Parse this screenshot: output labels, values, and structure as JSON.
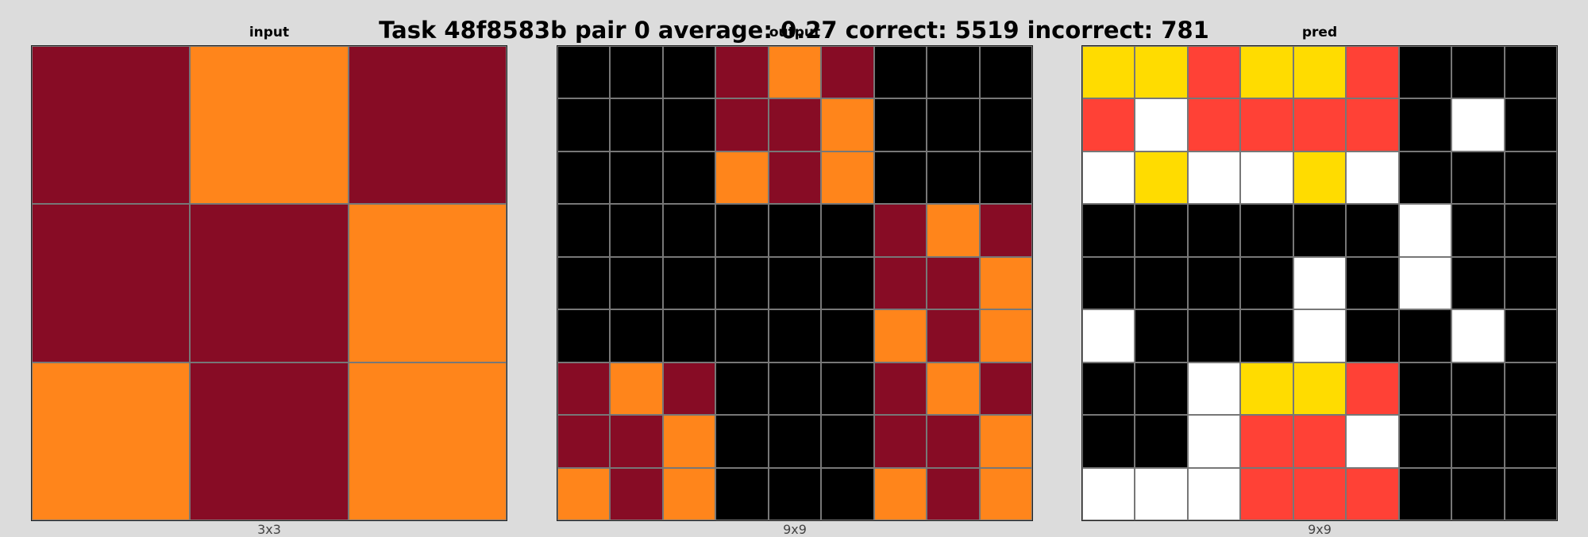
{
  "title": "Task 48f8583b pair 0 average: 0.27 correct: 5519 incorrect: 781",
  "palette": {
    "0": "#000000",
    "3": "#ffffff",
    "4": "#ffdc00",
    "5": "#ff4136",
    "6": "#870c25",
    "7": "#ff851b"
  },
  "panels": [
    {
      "label": "input",
      "dims": "3x3",
      "grid": [
        [
          6,
          7,
          6
        ],
        [
          6,
          6,
          7
        ],
        [
          7,
          6,
          7
        ]
      ]
    },
    {
      "label": "output",
      "dims": "9x9",
      "grid": [
        [
          0,
          0,
          0,
          6,
          7,
          6,
          0,
          0,
          0
        ],
        [
          0,
          0,
          0,
          6,
          6,
          7,
          0,
          0,
          0
        ],
        [
          0,
          0,
          0,
          7,
          6,
          7,
          0,
          0,
          0
        ],
        [
          0,
          0,
          0,
          0,
          0,
          0,
          6,
          7,
          6
        ],
        [
          0,
          0,
          0,
          0,
          0,
          0,
          6,
          6,
          7
        ],
        [
          0,
          0,
          0,
          0,
          0,
          0,
          7,
          6,
          7
        ],
        [
          6,
          7,
          6,
          0,
          0,
          0,
          6,
          7,
          6
        ],
        [
          6,
          6,
          7,
          0,
          0,
          0,
          6,
          6,
          7
        ],
        [
          7,
          6,
          7,
          0,
          0,
          0,
          7,
          6,
          7
        ]
      ]
    },
    {
      "label": "pred",
      "dims": "9x9",
      "grid": [
        [
          4,
          4,
          5,
          4,
          4,
          5,
          0,
          0,
          0
        ],
        [
          5,
          3,
          5,
          5,
          5,
          5,
          0,
          3,
          0
        ],
        [
          3,
          4,
          3,
          3,
          4,
          3,
          0,
          0,
          0
        ],
        [
          0,
          0,
          0,
          0,
          0,
          0,
          3,
          0,
          0
        ],
        [
          0,
          0,
          0,
          0,
          3,
          0,
          3,
          0,
          0
        ],
        [
          3,
          0,
          0,
          0,
          3,
          0,
          0,
          3,
          0
        ],
        [
          0,
          0,
          3,
          4,
          4,
          5,
          0,
          0,
          0
        ],
        [
          0,
          0,
          3,
          5,
          5,
          3,
          0,
          0,
          0
        ],
        [
          3,
          3,
          3,
          5,
          5,
          5,
          0,
          0,
          0
        ]
      ]
    }
  ]
}
